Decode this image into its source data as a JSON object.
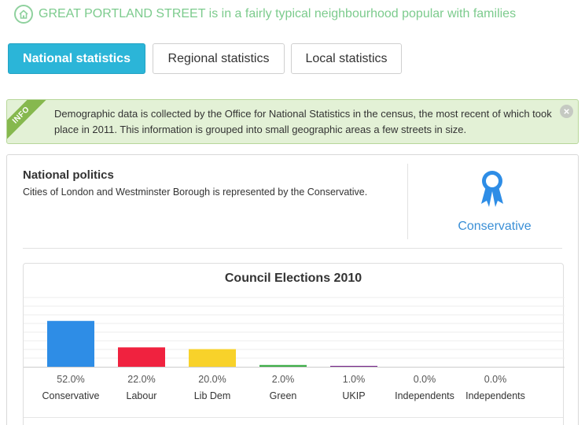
{
  "header": {
    "icon": "home-icon",
    "text": "GREAT PORTLAND STREET is in a fairly typical neighbourhood popular with families"
  },
  "tabs": {
    "national": "National statistics",
    "regional": "Regional statistics",
    "local": "Local statistics",
    "active": "national"
  },
  "info": {
    "ribbon": "INFO",
    "text": "Demographic data is collected by the Office for National Statistics in the census, the most recent of which took place in 2011. This information is grouped into small geographic areas a few streets in size.",
    "close_icon": "close-icon"
  },
  "politics": {
    "title": "National politics",
    "description": "Cities of London and Westminster Borough is represented by the Conservative.",
    "party": "Conservative",
    "party_icon": "rosette-icon"
  },
  "chart_data": {
    "type": "bar",
    "title": "Council Elections 2010",
    "categories": [
      "Conservative",
      "Labour",
      "Lib Dem",
      "Green",
      "UKIP",
      "Independents",
      "Independents"
    ],
    "values": [
      52.0,
      22.0,
      20.0,
      2.0,
      1.0,
      0.0,
      0.0
    ],
    "value_labels": [
      "52.0%",
      "22.0%",
      "20.0%",
      "2.0%",
      "1.0%",
      "0.0%",
      "0.0%"
    ],
    "colors": [
      "#2e8de6",
      "#f0223f",
      "#f8d22a",
      "#3fae49",
      "#7b2d8e",
      "#999999",
      "#999999"
    ],
    "xlabel": "",
    "ylabel": "",
    "ylim": [
      0,
      100
    ],
    "grid": true
  }
}
